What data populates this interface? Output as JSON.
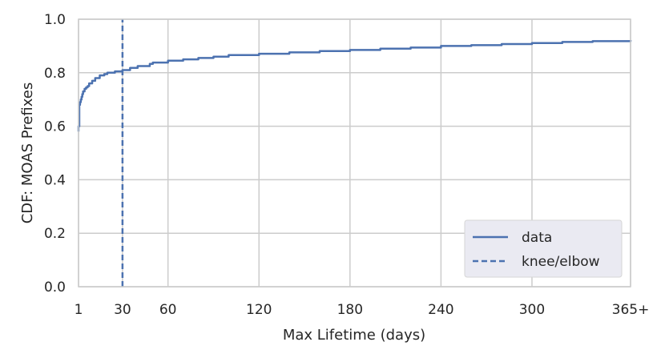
{
  "chart_data": {
    "type": "line",
    "xlabel": "Max Lifetime (days)",
    "ylabel": "CDF: MOAS Prefixes",
    "xlim": [
      1,
      365
    ],
    "ylim": [
      0.0,
      1.0
    ],
    "x_ticks": [
      {
        "value": 1,
        "label": "1"
      },
      {
        "value": 30,
        "label": "30"
      },
      {
        "value": 60,
        "label": "60"
      },
      {
        "value": 120,
        "label": "120"
      },
      {
        "value": 180,
        "label": "180"
      },
      {
        "value": 240,
        "label": "240"
      },
      {
        "value": 300,
        "label": "300"
      },
      {
        "value": 365,
        "label": "365+"
      }
    ],
    "y_ticks": [
      {
        "value": 0.0,
        "label": "0.0"
      },
      {
        "value": 0.2,
        "label": "0.2"
      },
      {
        "value": 0.4,
        "label": "0.4"
      },
      {
        "value": 0.6,
        "label": "0.6"
      },
      {
        "value": 0.8,
        "label": "0.8"
      },
      {
        "value": 1.0,
        "label": "1.0"
      }
    ],
    "grid": true,
    "legend_position": "lower-right",
    "series": [
      {
        "name": "data",
        "style": "solid",
        "color": "#4c72b0",
        "x": [
          1,
          1,
          1.5,
          1.5,
          2,
          2.5,
          3,
          3.5,
          4,
          5,
          6,
          7,
          8,
          10,
          12,
          15,
          18,
          20,
          25,
          30,
          35,
          40,
          48,
          50,
          60,
          70,
          80,
          90,
          100,
          120,
          140,
          160,
          180,
          200,
          220,
          240,
          260,
          280,
          300,
          320,
          340,
          365
        ],
        "y": [
          0.58,
          0.6,
          0.62,
          0.68,
          0.69,
          0.7,
          0.71,
          0.72,
          0.73,
          0.74,
          0.745,
          0.75,
          0.76,
          0.77,
          0.78,
          0.79,
          0.795,
          0.8,
          0.805,
          0.81,
          0.818,
          0.825,
          0.833,
          0.838,
          0.845,
          0.85,
          0.855,
          0.86,
          0.866,
          0.871,
          0.876,
          0.881,
          0.885,
          0.89,
          0.894,
          0.9,
          0.903,
          0.907,
          0.911,
          0.915,
          0.918,
          0.922
        ]
      },
      {
        "name": "knee/elbow",
        "style": "dashed",
        "color": "#4c72b0",
        "x": [
          30,
          30
        ],
        "y": [
          0.0,
          1.0
        ]
      }
    ]
  }
}
